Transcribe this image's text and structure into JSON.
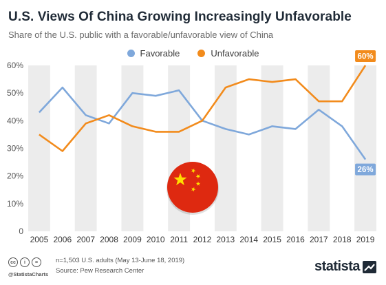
{
  "header": {
    "title": "U.S. Views Of China Growing Increasingly Unfavorable",
    "subtitle": "Share of the U.S. public with a favorable/unfavorable view of China"
  },
  "colors": {
    "favorable": "#7fa8db",
    "unfavorable": "#f28b1c",
    "band": "#ececec",
    "axis_text": "#555555",
    "flag_red": "#de2910",
    "flag_star": "#ffde00"
  },
  "chart_data": {
    "type": "line",
    "x": [
      "2005",
      "2006",
      "2007",
      "2008",
      "2009",
      "2010",
      "2011",
      "2012",
      "2013",
      "2014",
      "2015",
      "2016",
      "2017",
      "2018",
      "2019"
    ],
    "series": [
      {
        "name": "Favorable",
        "color": "#7fa8db",
        "values": [
          43,
          52,
          42,
          39,
          50,
          49,
          51,
          40,
          37,
          35,
          38,
          37,
          44,
          38,
          26
        ]
      },
      {
        "name": "Unfavorable",
        "color": "#f28b1c",
        "values": [
          35,
          29,
          39,
          42,
          38,
          36,
          36,
          40,
          52,
          55,
          54,
          55,
          47,
          47,
          60
        ]
      }
    ],
    "y_ticks": [
      "0",
      "10%",
      "20%",
      "30%",
      "40%",
      "50%",
      "60%"
    ],
    "ylim": [
      0,
      60
    ],
    "end_labels": {
      "favorable": "26%",
      "unfavorable": "60%"
    },
    "alternating_bands": true,
    "legend_position": "top-center",
    "decoration_icon": "china-flag-circle-icon"
  },
  "footer": {
    "license_icons": [
      "cc",
      "i",
      "="
    ],
    "handle": "@StatistaCharts",
    "note": "n=1,503 U.S. adults (May 13-June 18, 2019)",
    "source": "Source: Pew Research Center",
    "brand": "statista",
    "brand_icon": "statista-logo-icon"
  }
}
